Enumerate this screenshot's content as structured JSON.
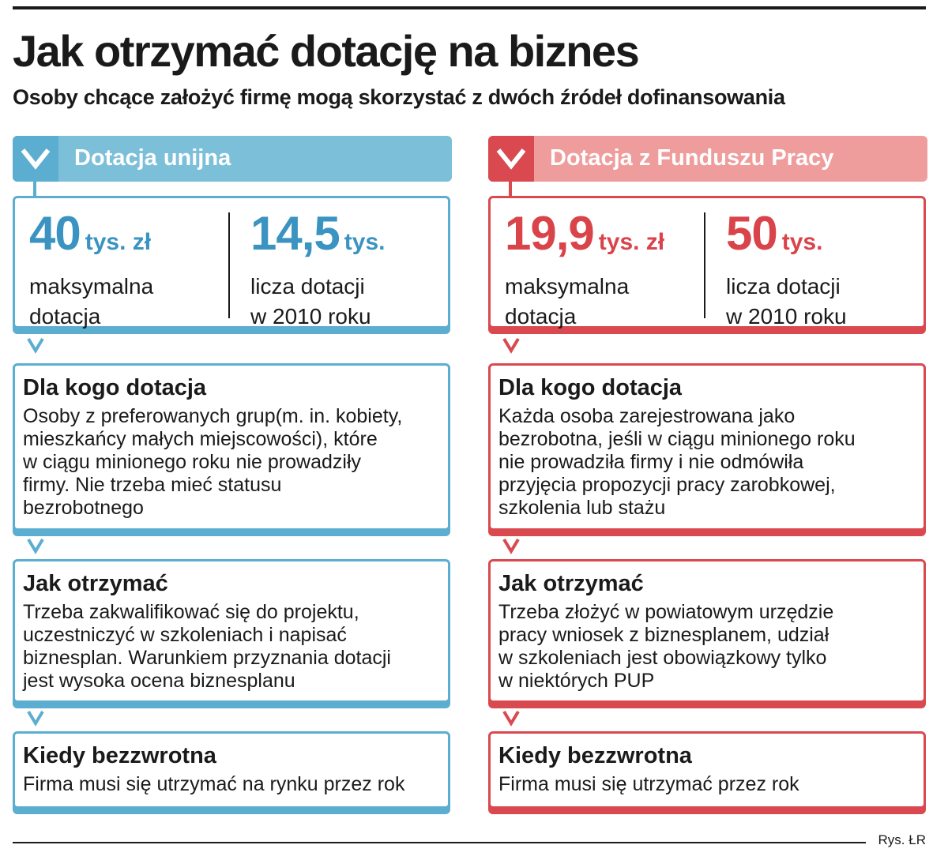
{
  "title": "Jak otrzymać dotację na biznes",
  "subtitle": "Osoby chcące założyć firmę mogą skorzystać z dwóch źródeł dofinansowania",
  "colors": {
    "eu_accent": "#5baed0",
    "eu_header": "#7cbfd9",
    "fp_accent": "#d9494f",
    "fp_header": "#ef9c9c"
  },
  "left": {
    "title": "Dotacja unijna",
    "stat1": {
      "value": "40",
      "unit": "tys. zł",
      "desc": "maksymalna\ndotacja"
    },
    "stat2": {
      "value": "14,5",
      "unit": "tys.",
      "desc": "licza dotacji\nw 2010 roku"
    },
    "who": {
      "heading": "Dla kogo dotacja",
      "body": "Osoby z preferowanych grup(m. in. kobiety,\nmieszkańcy małych miejscowości), które\nw ciągu minionego roku nie prowadziły\nfirmy. Nie trzeba mieć statusu\nbezrobotnego"
    },
    "how": {
      "heading": "Jak otrzymać",
      "body": "Trzeba zakwalifikować się do projektu,\nuczestniczyć w szkoleniach i napisać\nbiznesplan. Warunkiem przyznania dotacji\njest wysoka ocena biznesplanu"
    },
    "when": {
      "heading": "Kiedy bezzwrotna",
      "body": "Firma musi się utrzymać na rynku przez rok"
    }
  },
  "right": {
    "title": "Dotacja z Funduszu Pracy",
    "stat1": {
      "value": "19,9",
      "unit": "tys. zł",
      "desc": "maksymalna\ndotacja"
    },
    "stat2": {
      "value": "50",
      "unit": "tys.",
      "desc": "licza dotacji\nw 2010 roku"
    },
    "who": {
      "heading": "Dla kogo dotacja",
      "body": "Każda osoba zarejestrowana jako\nbezrobotna, jeśli w ciągu minionego roku\nnie prowadziła firmy i nie odmówiła\nprzyjęcia propozycji pracy zarobkowej,\nszkolenia lub stażu"
    },
    "how": {
      "heading": "Jak otrzymać",
      "body": "Trzeba złożyć w powiatowym urzędzie\npracy wniosek z biznesplanem, udział\nw szkoleniach jest obowiązkowy tylko\nw niektórych PUP"
    },
    "when": {
      "heading": "Kiedy bezzwrotna",
      "body": "Firma musi się utrzymać przez rok"
    }
  },
  "credit": "Rys. ŁR"
}
